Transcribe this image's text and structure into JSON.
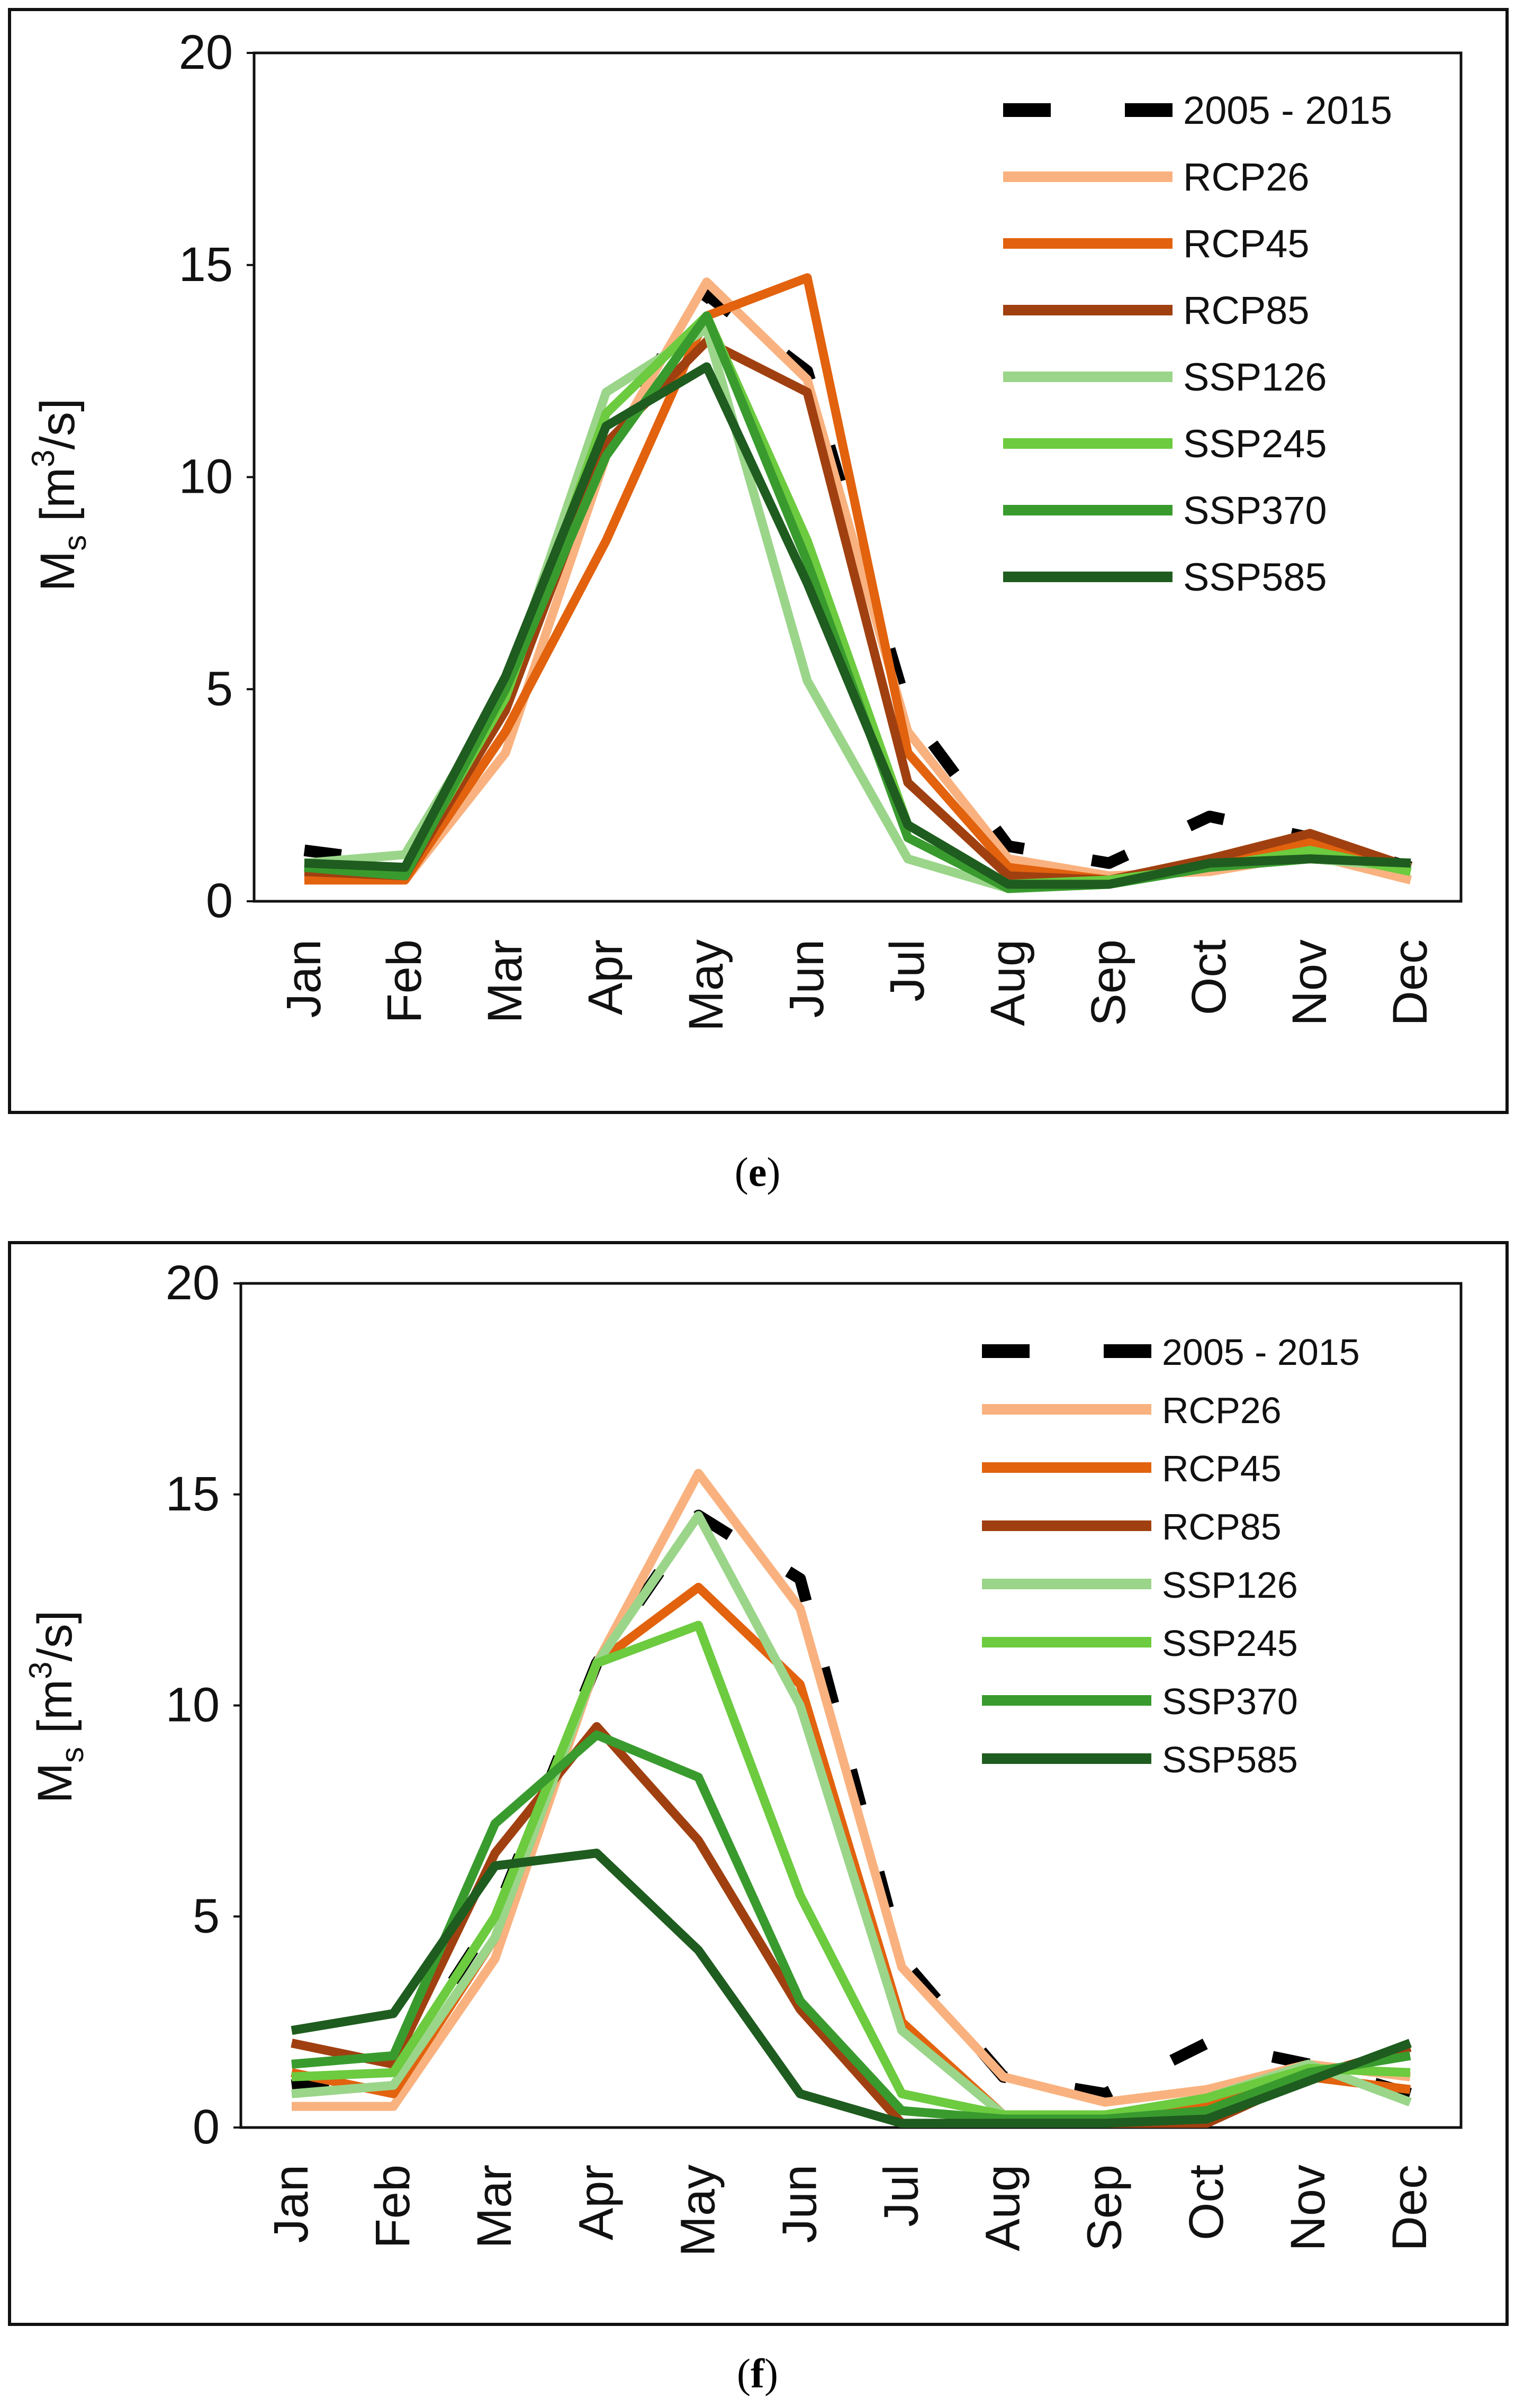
{
  "colors": {
    "baseline": "#000000",
    "RCP26": "#F9B27F",
    "RCP45": "#E2620E",
    "RCP85": "#A04010",
    "SSP126": "#9BD58A",
    "SSP245": "#6CCB3F",
    "SSP370": "#399B2E",
    "SSP585": "#1F5C1F"
  },
  "captions": {
    "e": "e",
    "f": "f"
  },
  "chart_data": [
    {
      "id": "e",
      "type": "line",
      "ylabel_main": "M",
      "ylabel_sub": "s",
      "ylabel_unit_pre": "[m",
      "ylabel_unit_sup": "3",
      "ylabel_unit_post": "/s]",
      "ylim": [
        0,
        20
      ],
      "yticks": [
        "0",
        "5",
        "10",
        "15",
        "20"
      ],
      "categories": [
        "Jan",
        "Feb",
        "Mar",
        "Apr",
        "May",
        "Jun",
        "Jul",
        "Aug",
        "Sep",
        "Oct",
        "Nov",
        "Dec"
      ],
      "legend_position": "top-right",
      "series": [
        {
          "name": "2005 - 2015",
          "key": "baseline",
          "dashed": true,
          "values": [
            1.2,
            0.9,
            5.0,
            11.0,
            14.3,
            12.5,
            4.5,
            1.3,
            0.9,
            2.0,
            1.5,
            0.8
          ]
        },
        {
          "name": "RCP26",
          "key": "RCP26",
          "values": [
            0.6,
            0.5,
            3.5,
            10.5,
            14.6,
            12.3,
            4.0,
            1.0,
            0.6,
            0.7,
            1.1,
            0.5
          ]
        },
        {
          "name": "RCP45",
          "key": "RCP45",
          "values": [
            0.5,
            0.5,
            4.0,
            8.5,
            13.8,
            14.7,
            3.5,
            0.8,
            0.5,
            1.0,
            1.4,
            0.8
          ]
        },
        {
          "name": "RCP85",
          "key": "RCP85",
          "values": [
            0.7,
            0.6,
            4.5,
            10.8,
            13.2,
            12.0,
            2.8,
            0.6,
            0.5,
            1.0,
            1.6,
            0.8
          ]
        },
        {
          "name": "SSP126",
          "key": "SSP126",
          "values": [
            0.9,
            1.1,
            5.0,
            12.0,
            13.5,
            5.2,
            1.0,
            0.3,
            0.4,
            0.8,
            1.0,
            0.8
          ]
        },
        {
          "name": "SSP245",
          "key": "SSP245",
          "values": [
            0.8,
            0.7,
            4.8,
            11.5,
            13.8,
            8.5,
            1.8,
            0.4,
            0.5,
            0.8,
            1.2,
            0.7
          ]
        },
        {
          "name": "SSP370",
          "key": "SSP370",
          "values": [
            0.8,
            0.6,
            5.0,
            10.5,
            13.8,
            8.0,
            1.5,
            0.3,
            0.4,
            0.8,
            1.0,
            0.9
          ]
        },
        {
          "name": "SSP585",
          "key": "SSP585",
          "values": [
            0.9,
            0.8,
            5.3,
            11.2,
            12.6,
            7.5,
            1.8,
            0.4,
            0.4,
            0.9,
            1.0,
            0.9
          ]
        }
      ]
    },
    {
      "id": "f",
      "type": "line",
      "ylabel_main": "M",
      "ylabel_sub": "s",
      "ylabel_unit_pre": "[m",
      "ylabel_unit_sup": "3",
      "ylabel_unit_post": "/s]",
      "ylim": [
        0,
        20
      ],
      "yticks": [
        "0",
        "5",
        "10",
        "15",
        "20"
      ],
      "categories": [
        "Jan",
        "Feb",
        "Mar",
        "Apr",
        "May",
        "Jun",
        "Jul",
        "Aug",
        "Sep",
        "Oct",
        "Nov",
        "Dec"
      ],
      "legend_position": "top-right",
      "series": [
        {
          "name": "2005 - 2015",
          "key": "baseline",
          "dashed": true,
          "values": [
            1.0,
            1.3,
            5.0,
            11.0,
            14.5,
            13.0,
            4.0,
            1.2,
            0.8,
            2.0,
            1.5,
            0.8
          ]
        },
        {
          "name": "RCP26",
          "key": "RCP26",
          "values": [
            0.5,
            0.5,
            4.0,
            11.0,
            15.5,
            12.3,
            3.8,
            1.2,
            0.6,
            0.9,
            1.5,
            1.2
          ]
        },
        {
          "name": "RCP45",
          "key": "RCP45",
          "values": [
            1.3,
            0.8,
            4.5,
            11.0,
            12.8,
            10.5,
            2.5,
            0.3,
            0.3,
            0.6,
            1.2,
            0.9
          ]
        },
        {
          "name": "RCP85",
          "key": "RCP85",
          "values": [
            2.0,
            1.5,
            6.5,
            9.5,
            6.8,
            2.8,
            0.1,
            0.1,
            0.1,
            0.1,
            1.2,
            1.9
          ]
        },
        {
          "name": "SSP126",
          "key": "SSP126",
          "values": [
            0.8,
            1.0,
            4.5,
            11.0,
            14.5,
            10.0,
            2.3,
            0.3,
            0.3,
            0.7,
            1.5,
            0.6
          ]
        },
        {
          "name": "SSP245",
          "key": "SSP245",
          "values": [
            1.2,
            1.3,
            5.0,
            11.0,
            11.9,
            5.5,
            0.8,
            0.3,
            0.3,
            0.7,
            1.4,
            1.3
          ]
        },
        {
          "name": "SSP370",
          "key": "SSP370",
          "values": [
            1.5,
            1.7,
            7.2,
            9.3,
            8.3,
            3.0,
            0.4,
            0.2,
            0.2,
            0.4,
            1.3,
            1.7
          ]
        },
        {
          "name": "SSP585",
          "key": "SSP585",
          "values": [
            2.3,
            2.7,
            6.2,
            6.5,
            4.2,
            0.8,
            0.1,
            0.1,
            0.1,
            0.2,
            1.1,
            2.0
          ]
        }
      ]
    }
  ]
}
